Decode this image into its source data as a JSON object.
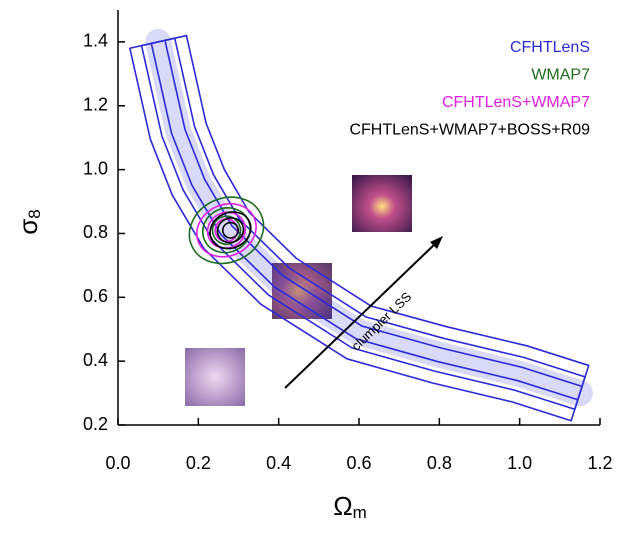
{
  "chart_data": {
    "type": "contour",
    "xlabel": {
      "symbol": "Ω",
      "subscript": "m"
    },
    "ylabel": {
      "symbol": "σ",
      "subscript": "8"
    },
    "xlim": [
      0,
      1.2
    ],
    "ylim": [
      0.2,
      1.5
    ],
    "xticks": [
      {
        "value": 0,
        "label": "0.0"
      },
      0.2,
      0.4,
      0.6,
      0.8,
      {
        "value": 1,
        "label": "1.0"
      },
      1.2
    ],
    "yticks": [
      0.2,
      0.4,
      0.6,
      0.8,
      {
        "value": 1,
        "label": "1.0"
      },
      1.2,
      1.4
    ],
    "legend": "upper right",
    "annotation": "clumpier LSS",
    "series": [
      {
        "name": "CFHTLenS",
        "color": "#2b2bd8",
        "x": [
          0.1,
          0.15,
          0.2,
          0.27,
          0.4,
          0.6,
          0.8,
          1.0,
          1.15
        ],
        "y": [
          1.4,
          1.12,
          0.96,
          0.81,
          0.65,
          0.49,
          0.42,
          0.36,
          0.3
        ]
      },
      {
        "name": "WMAP7",
        "color": "#1d6b1d",
        "x": [
          0.27
        ],
        "y": [
          0.81
        ]
      },
      {
        "name": "CFHTLenS+WMAP7",
        "color": "#e020e0",
        "x": [
          0.27
        ],
        "y": [
          0.81
        ]
      },
      {
        "name": "CFHTLenS+WMAP7+BOSS+R09",
        "color": "#000000",
        "x": [
          0.28
        ],
        "y": [
          0.81
        ]
      }
    ]
  }
}
